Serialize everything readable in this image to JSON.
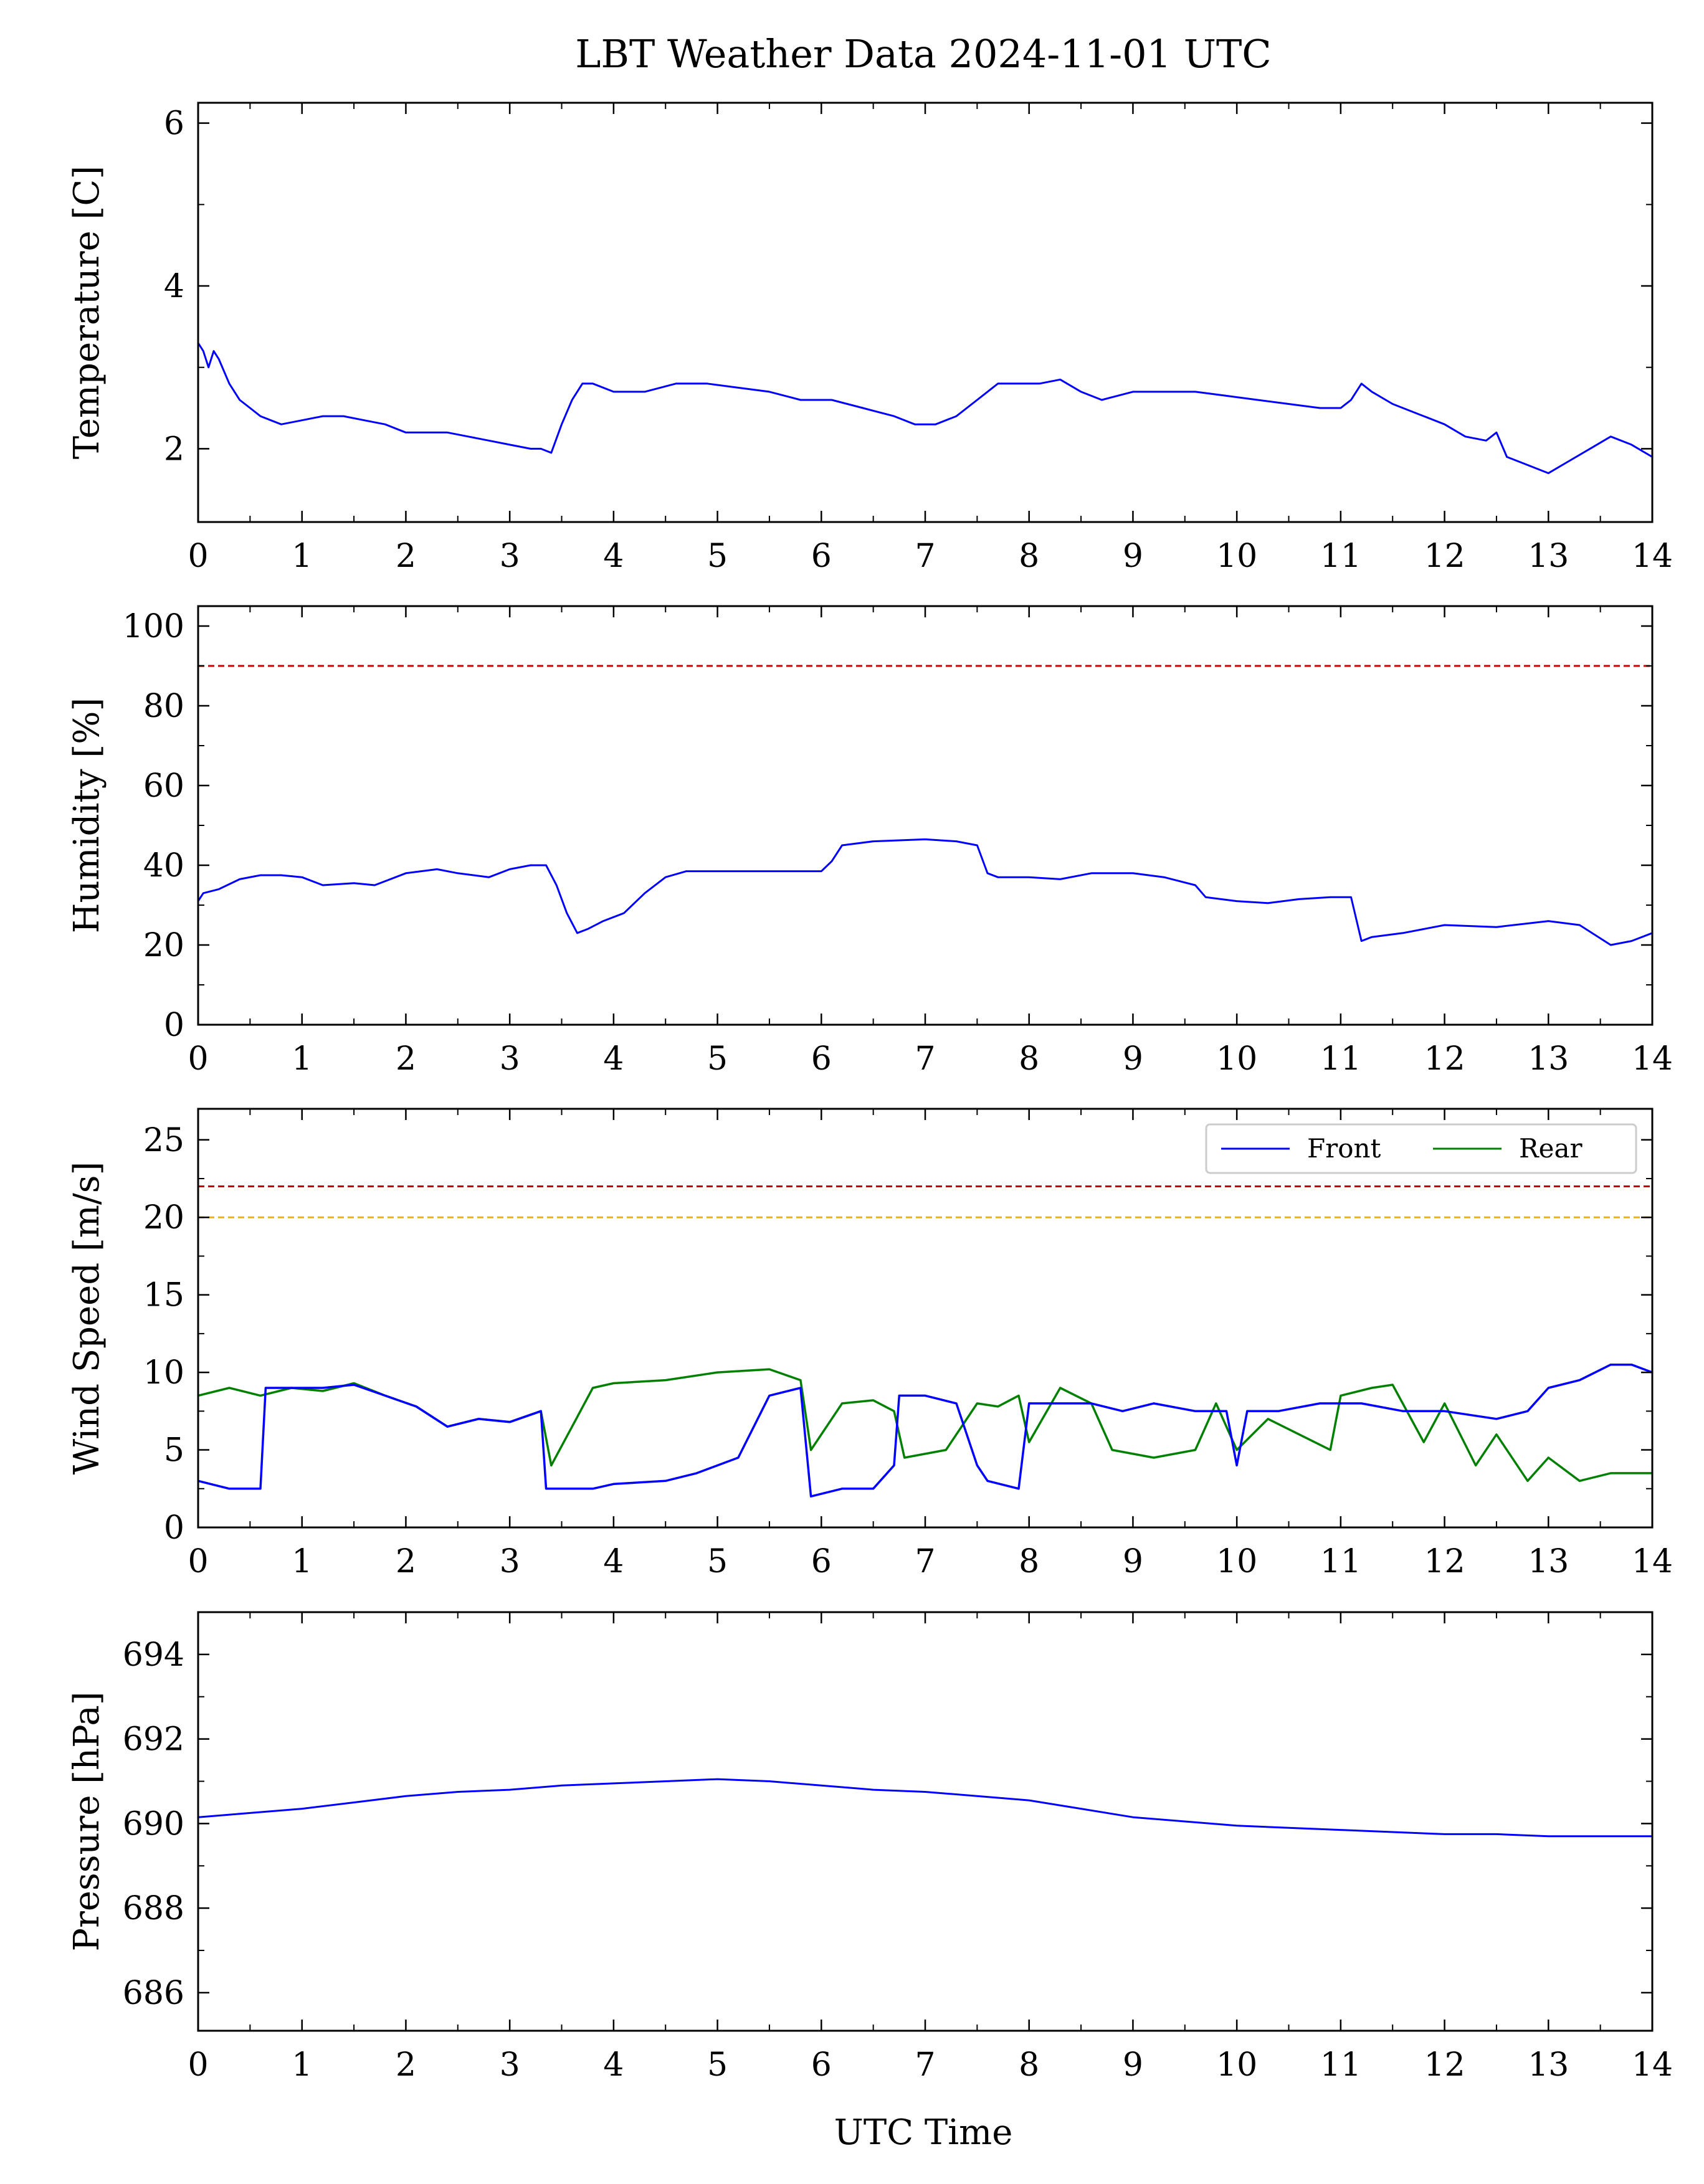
{
  "chart_data": {
    "type": "line",
    "title": "LBT Weather Data 2024-11-01 UTC",
    "xlabel": "UTC Time",
    "xlim": [
      0,
      14
    ],
    "xticks": [
      0,
      1,
      2,
      3,
      4,
      5,
      6,
      7,
      8,
      9,
      10,
      11,
      12,
      13,
      14
    ],
    "panels": [
      {
        "id": "temperature",
        "ylabel": "Temperature [C]",
        "ylim": [
          1.1,
          6.25
        ],
        "yticks": [
          2,
          4,
          6
        ],
        "thresholds": [],
        "series": [
          {
            "color": "#0000ff",
            "x": [
              0,
              0.05,
              0.1,
              0.15,
              0.2,
              0.3,
              0.4,
              0.5,
              0.6,
              0.7,
              0.8,
              1.0,
              1.2,
              1.4,
              1.6,
              1.8,
              2.0,
              2.2,
              2.4,
              2.6,
              2.8,
              3.0,
              3.2,
              3.3,
              3.4,
              3.5,
              3.6,
              3.7,
              3.8,
              4.0,
              4.3,
              4.6,
              4.9,
              5.2,
              5.5,
              5.8,
              6.1,
              6.4,
              6.7,
              6.9,
              7.1,
              7.3,
              7.5,
              7.7,
              7.9,
              8.1,
              8.3,
              8.5,
              8.7,
              9.0,
              9.3,
              9.6,
              9.9,
              10.2,
              10.5,
              10.8,
              11.0,
              11.1,
              11.2,
              11.3,
              11.5,
              11.8,
              12.0,
              12.2,
              12.4,
              12.5,
              12.6,
              12.8,
              13.0,
              13.2,
              13.4,
              13.6,
              13.8,
              14.0
            ],
            "y": [
              3.3,
              3.2,
              3.0,
              3.2,
              3.1,
              2.8,
              2.6,
              2.5,
              2.4,
              2.35,
              2.3,
              2.35,
              2.4,
              2.4,
              2.35,
              2.3,
              2.2,
              2.2,
              2.2,
              2.15,
              2.1,
              2.05,
              2.0,
              2.0,
              1.95,
              2.3,
              2.6,
              2.8,
              2.8,
              2.7,
              2.7,
              2.8,
              2.8,
              2.75,
              2.7,
              2.6,
              2.6,
              2.5,
              2.4,
              2.3,
              2.3,
              2.4,
              2.6,
              2.8,
              2.8,
              2.8,
              2.85,
              2.7,
              2.6,
              2.7,
              2.7,
              2.7,
              2.65,
              2.6,
              2.55,
              2.5,
              2.5,
              2.6,
              2.8,
              2.7,
              2.55,
              2.4,
              2.3,
              2.15,
              2.1,
              2.2,
              1.9,
              1.8,
              1.7,
              1.85,
              2.0,
              2.15,
              2.05,
              1.9
            ]
          }
        ]
      },
      {
        "id": "humidity",
        "ylabel": "Humidity [%]",
        "ylim": [
          0,
          105
        ],
        "yticks": [
          0,
          20,
          40,
          60,
          80,
          100
        ],
        "thresholds": [
          {
            "value": 90,
            "color": "#cc0000"
          }
        ],
        "series": [
          {
            "color": "#0000ff",
            "x": [
              0,
              0.05,
              0.2,
              0.4,
              0.6,
              0.8,
              1.0,
              1.2,
              1.5,
              1.7,
              2.0,
              2.3,
              2.5,
              2.8,
              3.0,
              3.2,
              3.35,
              3.45,
              3.55,
              3.65,
              3.75,
              3.9,
              4.1,
              4.3,
              4.5,
              4.7,
              5.0,
              5.5,
              6.0,
              6.1,
              6.2,
              6.5,
              7.0,
              7.3,
              7.5,
              7.6,
              7.7,
              8.0,
              8.3,
              8.6,
              9.0,
              9.3,
              9.6,
              9.7,
              10.0,
              10.3,
              10.6,
              10.9,
              11.1,
              11.2,
              11.3,
              11.6,
              12.0,
              12.5,
              13.0,
              13.3,
              13.6,
              13.8,
              14.0
            ],
            "y": [
              31,
              33,
              34,
              36.5,
              37.5,
              37.5,
              37,
              35,
              35.5,
              35,
              38,
              39,
              38,
              37,
              39,
              40,
              40,
              35,
              28,
              23,
              24,
              26,
              28,
              33,
              37,
              38.5,
              38.5,
              38.5,
              38.5,
              41,
              45,
              46,
              46.5,
              46,
              45,
              38,
              37,
              37,
              36.5,
              38,
              38,
              37,
              35,
              32,
              31,
              30.5,
              31.5,
              32,
              32,
              21,
              22,
              23,
              25,
              24.5,
              26,
              25,
              20,
              21,
              23
            ]
          }
        ]
      },
      {
        "id": "wind",
        "ylabel": "Wind Speed [m/s]",
        "ylim": [
          0,
          27
        ],
        "yticks": [
          0,
          5,
          10,
          15,
          20,
          25
        ],
        "thresholds": [
          {
            "value": 22,
            "color": "#cc0000"
          },
          {
            "value": 20,
            "color": "#e6b800"
          }
        ],
        "legend": {
          "position": "top-right"
        },
        "series": [
          {
            "name": "Rear",
            "color": "#008000",
            "x": [
              0,
              0.3,
              0.6,
              0.9,
              1.2,
              1.5,
              1.8,
              2.1,
              2.4,
              2.7,
              3.0,
              3.3,
              3.4,
              3.6,
              3.8,
              4.0,
              4.5,
              5.0,
              5.5,
              5.8,
              5.9,
              6.2,
              6.5,
              6.7,
              6.8,
              7.2,
              7.5,
              7.7,
              7.9,
              8.0,
              8.3,
              8.6,
              8.8,
              9.2,
              9.6,
              9.8,
              10.0,
              10.3,
              10.6,
              10.9,
              11.0,
              11.3,
              11.5,
              11.8,
              12.0,
              12.3,
              12.5,
              12.8,
              13.0,
              13.3,
              13.6,
              14.0
            ],
            "y": [
              8.5,
              9.0,
              8.5,
              9.0,
              8.8,
              9.3,
              8.5,
              7.8,
              6.5,
              7.0,
              6.8,
              7.5,
              4.0,
              6.5,
              9.0,
              9.3,
              9.5,
              10.0,
              10.2,
              9.5,
              5.0,
              8.0,
              8.2,
              7.5,
              4.5,
              5.0,
              8.0,
              7.8,
              8.5,
              5.5,
              9.0,
              8.0,
              5.0,
              4.5,
              5.0,
              8.0,
              5.0,
              7.0,
              6.0,
              5.0,
              8.5,
              9.0,
              9.2,
              5.5,
              8.0,
              4.0,
              6.0,
              3.0,
              4.5,
              3.0,
              3.5,
              3.5
            ]
          },
          {
            "name": "Front",
            "color": "#0000ff",
            "x": [
              0,
              0.3,
              0.6,
              0.65,
              0.9,
              1.2,
              1.5,
              1.8,
              2.1,
              2.4,
              2.7,
              3.0,
              3.3,
              3.35,
              3.8,
              4.0,
              4.5,
              4.8,
              5.2,
              5.5,
              5.8,
              5.9,
              6.2,
              6.5,
              6.7,
              6.75,
              7.0,
              7.3,
              7.5,
              7.6,
              7.9,
              8.0,
              8.3,
              8.6,
              8.9,
              9.2,
              9.6,
              9.9,
              10.0,
              10.1,
              10.4,
              10.8,
              11.2,
              11.6,
              12.0,
              12.5,
              12.8,
              13.0,
              13.3,
              13.6,
              13.8,
              14.0
            ],
            "y": [
              3.0,
              2.5,
              2.5,
              9.0,
              9.0,
              9.0,
              9.2,
              8.5,
              7.8,
              6.5,
              7.0,
              6.8,
              7.5,
              2.5,
              2.5,
              2.8,
              3.0,
              3.5,
              4.5,
              8.5,
              9.0,
              2.0,
              2.5,
              2.5,
              4.0,
              8.5,
              8.5,
              8.0,
              4.0,
              3.0,
              2.5,
              8.0,
              8.0,
              8.0,
              7.5,
              8.0,
              7.5,
              7.5,
              4.0,
              7.5,
              7.5,
              8.0,
              8.0,
              7.5,
              7.5,
              7.0,
              7.5,
              9.0,
              9.5,
              10.5,
              10.5,
              10.0
            ]
          }
        ]
      },
      {
        "id": "pressure",
        "ylabel": "Pressure [hPa]",
        "ylim": [
          685.1,
          695.0
        ],
        "yticks": [
          686,
          688,
          690,
          692,
          694
        ],
        "thresholds": [],
        "series": [
          {
            "color": "#0000ff",
            "x": [
              0,
              0.5,
              1.0,
              1.5,
              2.0,
              2.5,
              3.0,
              3.5,
              4.0,
              4.5,
              5.0,
              5.5,
              6.0,
              6.5,
              7.0,
              7.5,
              8.0,
              8.5,
              9.0,
              9.5,
              10.0,
              10.5,
              11.0,
              11.5,
              12.0,
              12.5,
              13.0,
              13.5,
              14.0
            ],
            "y": [
              690.15,
              690.25,
              690.35,
              690.5,
              690.65,
              690.75,
              690.8,
              690.9,
              690.95,
              691.0,
              691.05,
              691.0,
              690.9,
              690.8,
              690.75,
              690.65,
              690.55,
              690.35,
              690.15,
              690.05,
              689.95,
              689.9,
              689.85,
              689.8,
              689.75,
              689.75,
              689.7,
              689.7,
              689.7
            ]
          }
        ]
      }
    ]
  }
}
